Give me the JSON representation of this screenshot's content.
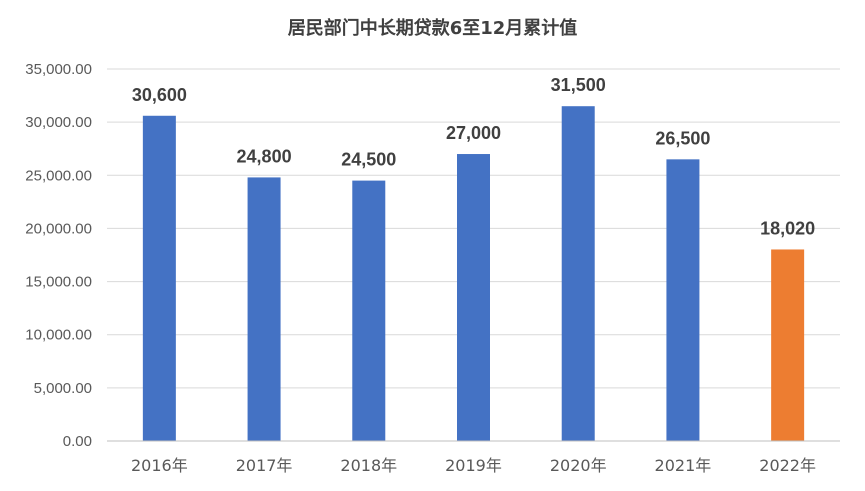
{
  "chart_data": {
    "type": "bar",
    "title": "居民部门中长期贷款6至12月累计值",
    "xlabel": "",
    "ylabel": "",
    "categories": [
      "2016年",
      "2017年",
      "2018年",
      "2019年",
      "2020年",
      "2021年",
      "2022年"
    ],
    "values": [
      30600,
      24800,
      24500,
      27000,
      31500,
      26500,
      18020
    ],
    "data_labels": [
      "30,600",
      "24,800",
      "24,500",
      "27,000",
      "31,500",
      "26,500",
      "18,020"
    ],
    "ylim": [
      0,
      35000
    ],
    "yticks": [
      0,
      5000,
      10000,
      15000,
      20000,
      25000,
      30000,
      35000
    ],
    "ytick_labels": [
      "0.00",
      "5,000.00",
      "10,000.00",
      "15,000.00",
      "20,000.00",
      "25,000.00",
      "30,000.00",
      "35,000.00"
    ],
    "grid": true,
    "legend": "none",
    "colors": {
      "default_bar": "#4472c4",
      "highlight_bar": "#ed7d31",
      "highlight_index": 6
    }
  }
}
